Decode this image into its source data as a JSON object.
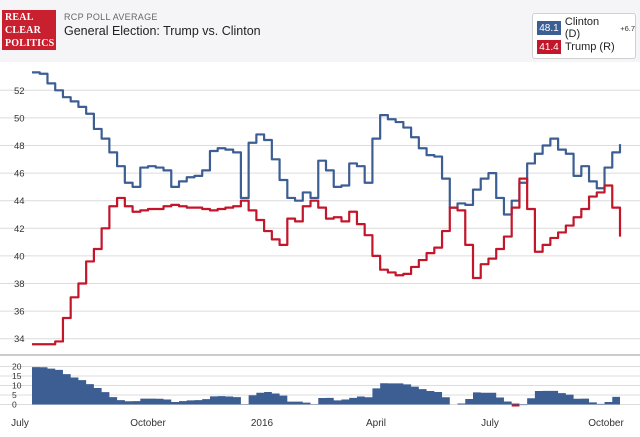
{
  "header": {
    "logo_lines": [
      "REAL",
      "CLEAR",
      "POLITICS"
    ],
    "label": "RCP POLL AVERAGE",
    "title": "General Election: Trump vs. Clinton"
  },
  "legend": {
    "clinton_value": "48.1",
    "clinton_name": "Clinton (D)",
    "clinton_spread": "+6.7",
    "trump_value": "41.4",
    "trump_name": "Trump (R)"
  },
  "colors": {
    "clinton": "#3d5e92",
    "trump": "#c3162b",
    "grid": "#dcdcdc",
    "background": "#ffffff"
  },
  "chart_data": {
    "type": "line",
    "x_tick_labels": [
      "July",
      "October",
      "2016",
      "April",
      "July",
      "October"
    ],
    "y_ticks": [
      34,
      36,
      38,
      40,
      42,
      44,
      46,
      48,
      50,
      52
    ],
    "ylim": [
      33,
      53
    ],
    "grid": true,
    "series": [
      {
        "name": "Clinton (D)",
        "color": "#3d5e92",
        "values": [
          53.3,
          53.2,
          52.5,
          52.0,
          51.5,
          51.2,
          50.8,
          50.3,
          49.2,
          48.5,
          47.5,
          46.5,
          45.3,
          45.0,
          46.4,
          46.5,
          46.4,
          46.2,
          45.0,
          45.4,
          45.7,
          45.8,
          46.2,
          47.6,
          47.8,
          47.7,
          47.5,
          44.2,
          48.2,
          48.8,
          48.4,
          47.0,
          45.5,
          44.2,
          44.0,
          44.6,
          44.2,
          46.9,
          46.2,
          45.0,
          45.1,
          46.7,
          46.5,
          45.3,
          48.5,
          50.2,
          49.9,
          49.7,
          49.3,
          48.6,
          47.8,
          47.3,
          47.2,
          45.6,
          43.5,
          43.8,
          43.7,
          44.8,
          45.6,
          46.0,
          44.2,
          43.0,
          44.0,
          45.3,
          46.7,
          47.4,
          48.0,
          48.5,
          47.7,
          47.4,
          45.8,
          46.5,
          45.4,
          44.9,
          46.4,
          47.5,
          48.1
        ]
      },
      {
        "name": "Trump (R)",
        "color": "#c3162b",
        "values": [
          33.6,
          33.6,
          33.6,
          33.8,
          35.5,
          37.0,
          38.0,
          39.6,
          40.5,
          42.0,
          43.6,
          44.2,
          43.6,
          43.2,
          43.3,
          43.4,
          43.4,
          43.6,
          43.7,
          43.6,
          43.5,
          43.5,
          43.4,
          43.3,
          43.4,
          43.5,
          43.6,
          44.0,
          43.3,
          42.6,
          41.8,
          41.2,
          40.8,
          42.7,
          42.5,
          43.6,
          44.0,
          43.5,
          42.7,
          42.8,
          42.5,
          43.2,
          42.3,
          41.5,
          40.0,
          39.0,
          38.8,
          38.6,
          38.7,
          39.2,
          39.7,
          40.2,
          40.6,
          41.8,
          43.5,
          43.3,
          40.8,
          38.4,
          39.4,
          39.8,
          40.5,
          41.4,
          43.5,
          45.6,
          43.4,
          40.3,
          40.8,
          41.3,
          41.7,
          42.2,
          42.8,
          43.4,
          44.3,
          44.6,
          45.1,
          43.5,
          41.4
        ]
      },
      {
        "name": "Spread",
        "color": "#3d5e92",
        "values": [
          19.7,
          19.6,
          18.9,
          18.2,
          16.0,
          14.2,
          12.8,
          10.7,
          8.7,
          6.5,
          3.9,
          2.3,
          1.7,
          1.8,
          3.1,
          3.1,
          3.0,
          2.6,
          1.3,
          1.8,
          2.2,
          2.3,
          2.8,
          4.3,
          4.4,
          4.2,
          3.9,
          0.2,
          4.9,
          6.2,
          6.6,
          5.8,
          4.7,
          1.5,
          1.5,
          1.0,
          0.2,
          3.4,
          3.5,
          2.2,
          2.6,
          3.5,
          4.2,
          3.8,
          8.5,
          11.2,
          11.1,
          11.1,
          10.6,
          9.4,
          8.1,
          7.1,
          6.6,
          3.8,
          0.0,
          0.5,
          2.9,
          6.4,
          6.2,
          6.2,
          3.7,
          1.6,
          0.5,
          -0.3,
          3.3,
          7.1,
          7.2,
          7.2,
          6.0,
          5.2,
          3.0,
          3.1,
          1.1,
          0.3,
          1.3,
          4.0,
          6.7
        ]
      }
    ],
    "spread_y_ticks": [
      0,
      5,
      10,
      15,
      20
    ]
  }
}
